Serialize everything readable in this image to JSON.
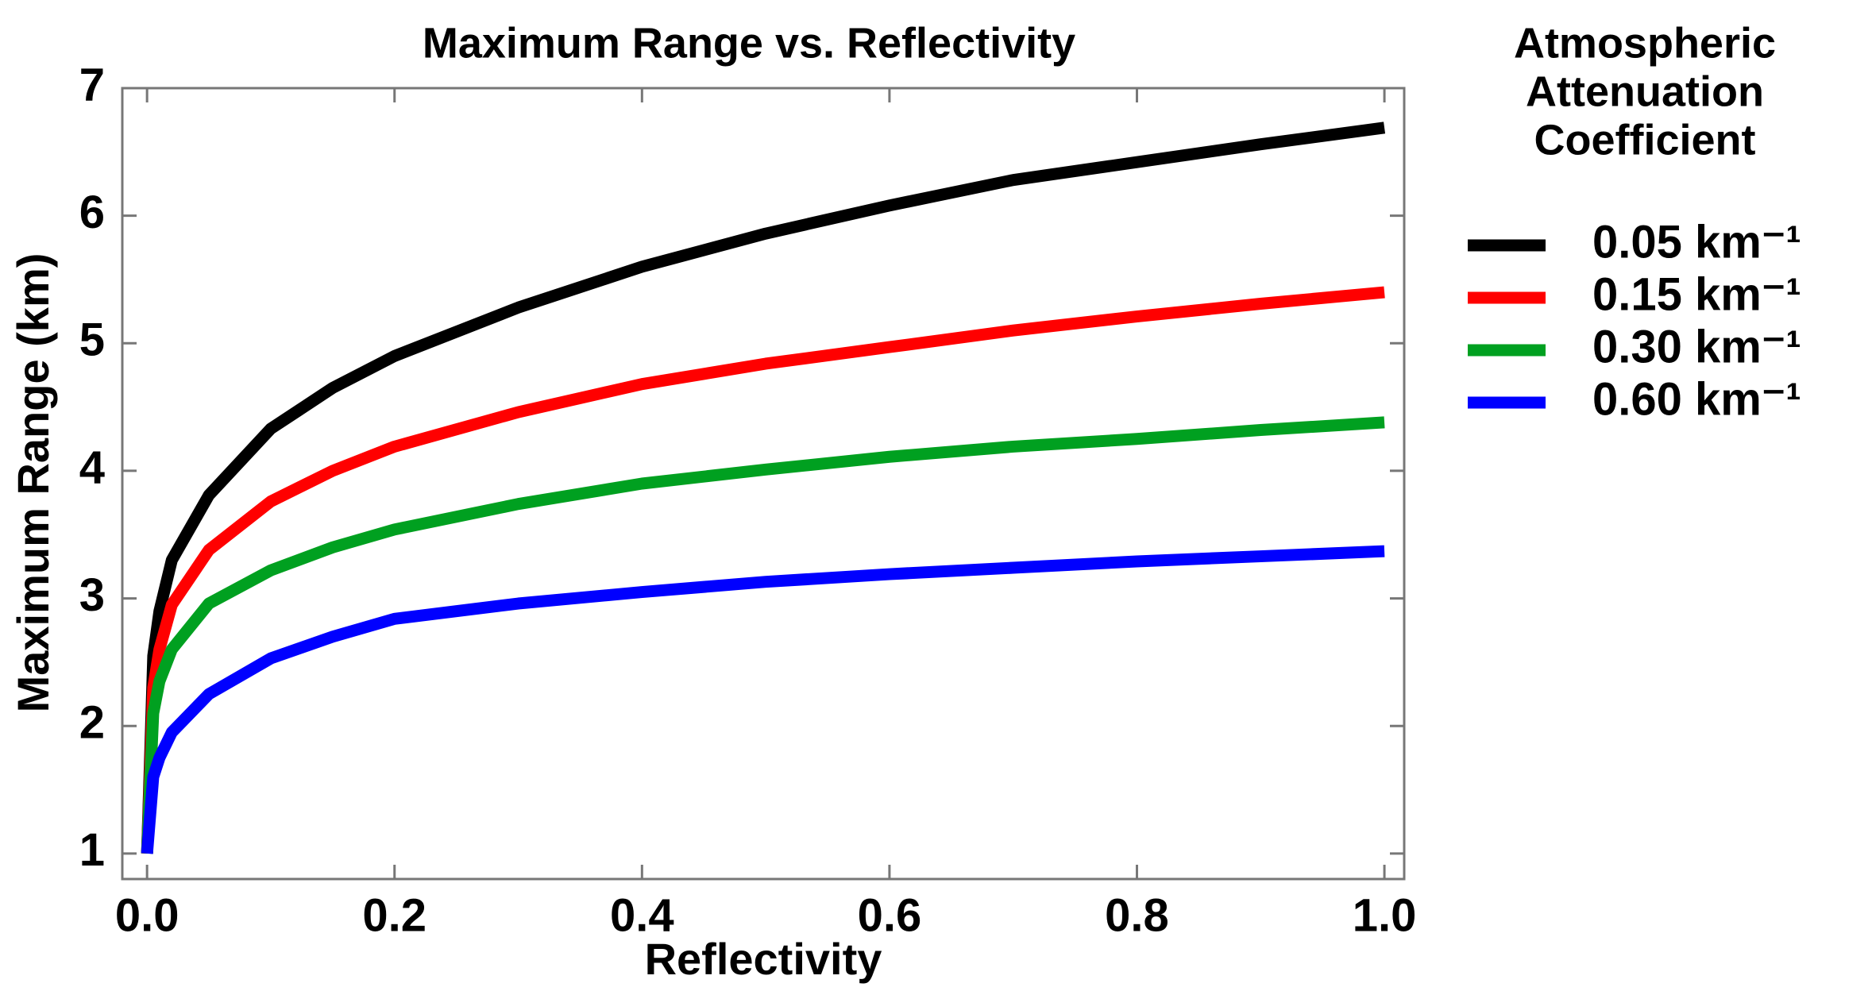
{
  "chart_data": {
    "type": "line",
    "title": "Maximum Range vs. Reflectivity",
    "x_label": "Reflectivity",
    "y_label": "Maximum Range (km)",
    "legend_title": [
      "Atmospheric",
      "Attenuation",
      "Coefficient"
    ],
    "legend_position": "right",
    "x": [
      0,
      0.005,
      0.01,
      0.02,
      0.05,
      0.1,
      0.15,
      0.2,
      0.3,
      0.4,
      0.5,
      0.6,
      0.7,
      0.8,
      0.9,
      1.0
    ],
    "series": [
      {
        "name": "0.05 km⁻¹",
        "color": "#000000",
        "values": [
          1.0,
          2.55,
          2.9,
          3.3,
          3.81,
          4.33,
          4.65,
          4.9,
          5.28,
          5.6,
          5.86,
          6.08,
          6.28,
          6.42,
          6.56,
          6.69
        ]
      },
      {
        "name": "0.15 km⁻¹",
        "color": "#ff0000",
        "values": [
          1.0,
          2.3,
          2.6,
          2.95,
          3.38,
          3.76,
          4.0,
          4.19,
          4.46,
          4.68,
          4.84,
          4.97,
          5.1,
          5.21,
          5.31,
          5.4
        ]
      },
      {
        "name": "0.30 km⁻¹",
        "color": "#00a020",
        "values": [
          1.0,
          2.1,
          2.35,
          2.6,
          2.96,
          3.22,
          3.4,
          3.54,
          3.74,
          3.9,
          4.01,
          4.11,
          4.19,
          4.25,
          4.32,
          4.38
        ]
      },
      {
        "name": "0.60 km⁻¹",
        "color": "#0000ff",
        "values": [
          1.0,
          1.6,
          1.75,
          1.95,
          2.25,
          2.53,
          2.7,
          2.84,
          2.96,
          3.05,
          3.13,
          3.19,
          3.24,
          3.29,
          3.33,
          3.37
        ]
      }
    ],
    "xlim": [
      -0.02,
      1.016
    ],
    "ylim": [
      0.8,
      7
    ],
    "xticks": [
      {
        "value": 0,
        "label": "0.0"
      },
      0.2,
      0.4,
      0.6,
      0.8,
      {
        "value": 1,
        "label": "1.0"
      }
    ],
    "yticks": [
      1,
      2,
      3,
      4,
      5,
      6,
      7
    ],
    "grid": false
  }
}
